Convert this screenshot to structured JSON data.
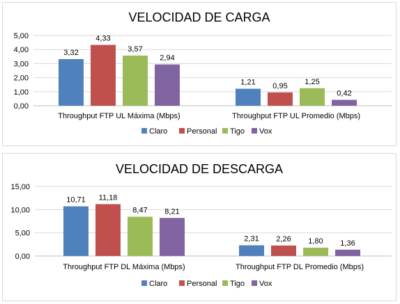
{
  "chart_data": [
    {
      "type": "bar",
      "title": "VELOCIDAD DE CARGA",
      "categories": [
        "Throughput FTP UL Máxima (Mbps)",
        "Throughput FTP UL Promedio (Mbps)"
      ],
      "series": [
        {
          "name": "Claro",
          "color": "#4f81bd",
          "values": [
            3.32,
            1.21
          ],
          "labels": [
            "3,32",
            "1,21"
          ]
        },
        {
          "name": "Personal",
          "color": "#c0504d",
          "values": [
            4.33,
            0.95
          ],
          "labels": [
            "4,33",
            "0,95"
          ]
        },
        {
          "name": "Tigo",
          "color": "#9bbb59",
          "values": [
            3.57,
            1.25
          ],
          "labels": [
            "3,57",
            "1,25"
          ]
        },
        {
          "name": "Vox",
          "color": "#8064a2",
          "values": [
            2.94,
            0.42
          ],
          "labels": [
            "2,94",
            "0,42"
          ]
        }
      ],
      "ylim": [
        0,
        5
      ],
      "yticks": [
        "0,00",
        "1,00",
        "2,00",
        "3,00",
        "4,00",
        "5,00"
      ],
      "grid": true,
      "legend_position": "bottom"
    },
    {
      "type": "bar",
      "title": "VELOCIDAD DE DESCARGA",
      "categories": [
        "Throughput FTP DL Máxima (Mbps)",
        "Throughput FTP DL Promedio (Mbps)"
      ],
      "series": [
        {
          "name": "Claro",
          "color": "#4f81bd",
          "values": [
            10.71,
            2.31
          ],
          "labels": [
            "10,71",
            "2,31"
          ]
        },
        {
          "name": "Personal",
          "color": "#c0504d",
          "values": [
            11.18,
            2.26
          ],
          "labels": [
            "11,18",
            "2,26"
          ]
        },
        {
          "name": "Tigo",
          "color": "#9bbb59",
          "values": [
            8.47,
            1.8
          ],
          "labels": [
            "8,47",
            "1,80"
          ]
        },
        {
          "name": "Vox",
          "color": "#8064a2",
          "values": [
            8.21,
            1.36
          ],
          "labels": [
            "8,21",
            "1,36"
          ]
        }
      ],
      "ylim": [
        0,
        15
      ],
      "yticks": [
        "0,00",
        "5,00",
        "10,00",
        "15,00"
      ],
      "grid": true,
      "legend_position": "bottom"
    }
  ]
}
